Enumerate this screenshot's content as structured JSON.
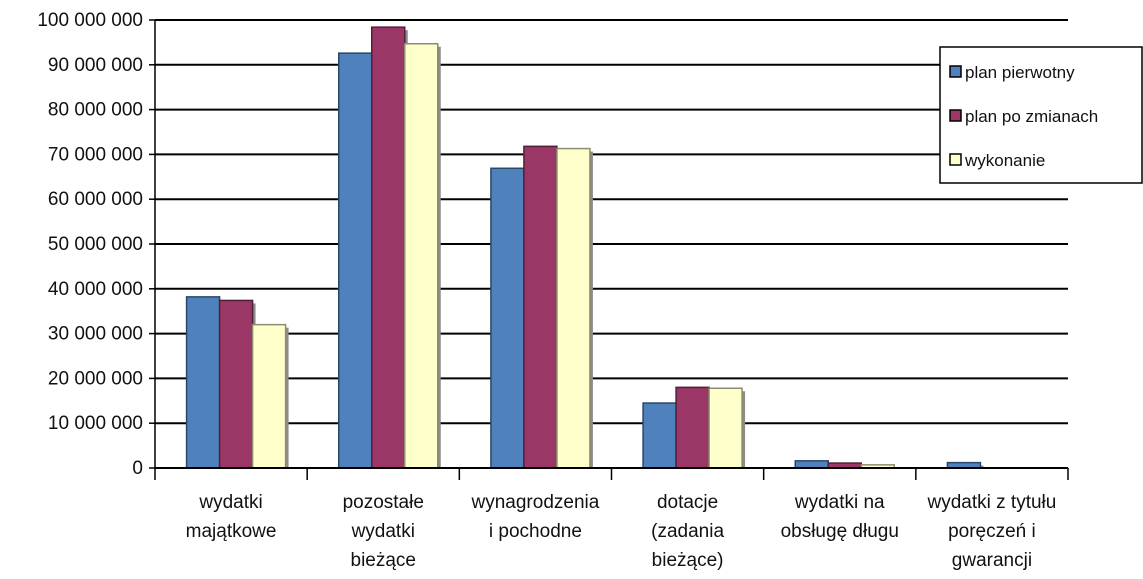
{
  "chart_data": {
    "type": "bar",
    "categories": [
      [
        "wydatki",
        "majątkowe"
      ],
      [
        "pozostałe",
        "wydatki",
        "bieżące"
      ],
      [
        "wynagrodzenia",
        "i pochodne"
      ],
      [
        "dotacje",
        "(zadania",
        "bieżące)"
      ],
      [
        "wydatki na",
        "obsługę długu"
      ],
      [
        "wydatki z tytułu",
        "poręczeń i",
        "gwarancji"
      ]
    ],
    "series": [
      {
        "name": "plan pierwotny",
        "color": "#4f81bd",
        "values": [
          38200000,
          92600000,
          66900000,
          14500000,
          1600000,
          1200000
        ]
      },
      {
        "name": "plan po  zmianach",
        "color": "#9b3766",
        "values": [
          37400000,
          98400000,
          71800000,
          18000000,
          1100000,
          0
        ]
      },
      {
        "name": "wykonanie",
        "color": "#ffffcc",
        "values": [
          32000000,
          94700000,
          71300000,
          17800000,
          700000,
          0
        ]
      }
    ],
    "yticks": [
      "0",
      "10 000 000",
      "20 000 000",
      "30 000 000",
      "40 000 000",
      "50 000 000",
      "60 000 000",
      "70 000 000",
      "80 000 000",
      "90 000 000",
      "100 000 000"
    ],
    "ylim": [
      0,
      100000000
    ],
    "grid": true,
    "legend": "top-right"
  }
}
